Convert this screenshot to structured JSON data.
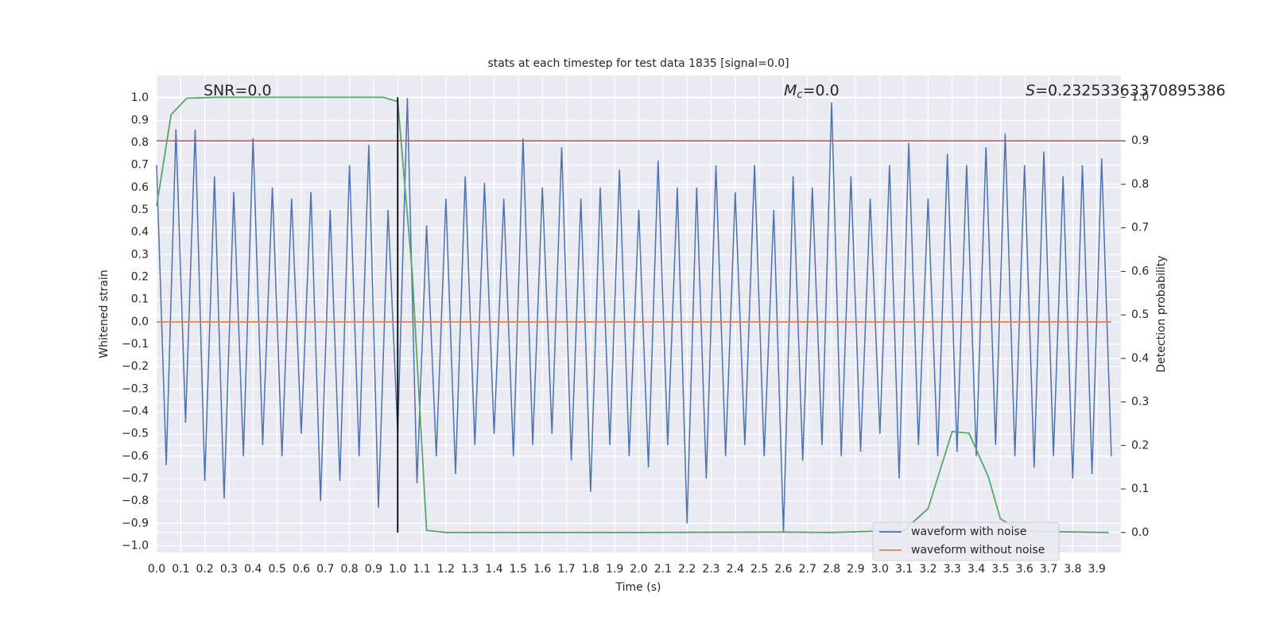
{
  "chart_data": {
    "type": "line",
    "title": "stats at each timestep for test data 1835 [signal=0.0]",
    "xlabel": "Time (s)",
    "ylabel": "Whitened strain",
    "y2label": "Detection probability",
    "annotations": [
      {
        "text": "SNR=0.0"
      },
      {
        "symbol": "M",
        "subscript": "c",
        "text": "=0.0"
      },
      {
        "symbol": "S",
        "text": "=0.23253363370895386"
      }
    ],
    "x": [
      0.0,
      0.04,
      0.08,
      0.12,
      0.16,
      0.2,
      0.24,
      0.28,
      0.32,
      0.36,
      0.4,
      0.44,
      0.48,
      0.52,
      0.56,
      0.6,
      0.64,
      0.68,
      0.72,
      0.76,
      0.8,
      0.84,
      0.88,
      0.92,
      0.96,
      1.0,
      1.04,
      1.08,
      1.12,
      1.16,
      1.2,
      1.24,
      1.28,
      1.32,
      1.36,
      1.4,
      1.44,
      1.48,
      1.52,
      1.56,
      1.6,
      1.64,
      1.68,
      1.72,
      1.76,
      1.8,
      1.84,
      1.88,
      1.92,
      1.96,
      2.0,
      2.04,
      2.08,
      2.12,
      2.16,
      2.2,
      2.24,
      2.28,
      2.32,
      2.36,
      2.4,
      2.44,
      2.48,
      2.52,
      2.56,
      2.6,
      2.64,
      2.68,
      2.72,
      2.76,
      2.8,
      2.84,
      2.88,
      2.92,
      2.96,
      3.0,
      3.04,
      3.08,
      3.12,
      3.16,
      3.2,
      3.24,
      3.28,
      3.32,
      3.36,
      3.4,
      3.44,
      3.48,
      3.52,
      3.56,
      3.6,
      3.64,
      3.68,
      3.72,
      3.76,
      3.8,
      3.84,
      3.88,
      3.92,
      3.96
    ],
    "series": [
      {
        "name": "waveform with noise",
        "color": "#4c72b0",
        "values": [
          0.7,
          -0.64,
          0.86,
          -0.45,
          0.86,
          -0.71,
          0.65,
          -0.79,
          0.58,
          -0.6,
          0.82,
          -0.55,
          0.6,
          -0.6,
          0.55,
          -0.5,
          0.58,
          -0.8,
          0.5,
          -0.71,
          0.7,
          -0.6,
          0.79,
          -0.83,
          0.5,
          -0.5,
          1.0,
          -0.72,
          0.43,
          -0.6,
          0.55,
          -0.68,
          0.65,
          -0.55,
          0.62,
          -0.5,
          0.55,
          -0.6,
          0.82,
          -0.55,
          0.6,
          -0.5,
          0.78,
          -0.62,
          0.55,
          -0.76,
          0.6,
          -0.55,
          0.68,
          -0.6,
          0.5,
          -0.65,
          0.72,
          -0.55,
          0.6,
          -0.9,
          0.6,
          -0.7,
          0.7,
          -0.6,
          0.58,
          -0.55,
          0.7,
          -0.6,
          0.5,
          -0.94,
          0.65,
          -0.62,
          0.6,
          -0.55,
          0.98,
          -0.6,
          0.65,
          -0.58,
          0.55,
          -0.5,
          0.7,
          -0.7,
          0.8,
          -0.55,
          0.55,
          -0.6,
          0.75,
          -0.58,
          0.7,
          -0.6,
          0.78,
          -0.55,
          0.84,
          -0.6,
          0.7,
          -0.65,
          0.76,
          -0.6,
          0.65,
          -0.7,
          0.7,
          -0.68,
          0.73,
          -0.6
        ]
      },
      {
        "name": "waveform without noise",
        "color": "#dd8452",
        "values": [
          0,
          0,
          0,
          0,
          0,
          0,
          0,
          0,
          0,
          0,
          0,
          0,
          0,
          0,
          0,
          0,
          0,
          0,
          0,
          0,
          0,
          0,
          0,
          0,
          0,
          0,
          0,
          0,
          0,
          0,
          0,
          0,
          0,
          0,
          0,
          0,
          0,
          0,
          0,
          0,
          0,
          0,
          0,
          0,
          0,
          0,
          0,
          0,
          0,
          0,
          0,
          0,
          0,
          0,
          0,
          0,
          0,
          0,
          0,
          0,
          0,
          0,
          0,
          0,
          0,
          0,
          0,
          0,
          0,
          0,
          0,
          0,
          0,
          0,
          0,
          0,
          0,
          0,
          0,
          0,
          0,
          0,
          0,
          0,
          0,
          0,
          0,
          0,
          0,
          0,
          0,
          0,
          0,
          0,
          0,
          0,
          0,
          0,
          0,
          0
        ]
      }
    ],
    "probability": {
      "color": "#55a868",
      "axis": "y2",
      "x": [
        0.0,
        0.06,
        0.125,
        0.25,
        0.5,
        0.94,
        1.0,
        1.06,
        1.12,
        1.2,
        1.6,
        2.0,
        2.6,
        2.8,
        3.1,
        3.2,
        3.3,
        3.37,
        3.45,
        3.5,
        3.6,
        3.95
      ],
      "values": [
        0.75,
        0.96,
        0.998,
        1.0,
        1.0,
        1.0,
        0.99,
        0.6,
        0.005,
        0.0,
        0.0,
        0.0,
        0.001,
        0.0,
        0.005,
        0.055,
        0.232,
        0.228,
        0.128,
        0.031,
        0.003,
        0.0
      ]
    },
    "threshold": {
      "value": 0.9,
      "axis": "y2",
      "color": "#c44e52"
    },
    "marker": {
      "x": 1.0,
      "ymin": 0.0,
      "ymax": 1.0,
      "axis": "y2",
      "color": "#000000"
    },
    "xlim": [
      0,
      4.0
    ],
    "ylim": [
      -1.03,
      1.1
    ],
    "y2lim": [
      -0.046,
      1.05
    ],
    "xticks": [
      {
        "value": 0.0,
        "label": "0.0"
      },
      {
        "value": 0.1,
        "label": "0.1"
      },
      {
        "value": 0.2,
        "label": "0.2"
      },
      {
        "value": 0.3,
        "label": "0.3"
      },
      {
        "value": 0.4,
        "label": "0.4"
      },
      {
        "value": 0.5,
        "label": "0.5"
      },
      {
        "value": 0.6,
        "label": "0.6"
      },
      {
        "value": 0.7,
        "label": "0.7"
      },
      {
        "value": 0.8,
        "label": "0.8"
      },
      {
        "value": 0.9,
        "label": "0.9"
      },
      {
        "value": 1.0,
        "label": "1.0"
      },
      {
        "value": 1.1,
        "label": "1.1"
      },
      {
        "value": 1.2,
        "label": "1.2"
      },
      {
        "value": 1.3,
        "label": "1.3"
      },
      {
        "value": 1.4,
        "label": "1.4"
      },
      {
        "value": 1.5,
        "label": "1.5"
      },
      {
        "value": 1.6,
        "label": "1.6"
      },
      {
        "value": 1.7,
        "label": "1.7"
      },
      {
        "value": 1.8,
        "label": "1.8"
      },
      {
        "value": 1.9,
        "label": "1.9"
      },
      {
        "value": 2.0,
        "label": "2.0"
      },
      {
        "value": 2.1,
        "label": "2.1"
      },
      {
        "value": 2.2,
        "label": "2.2"
      },
      {
        "value": 2.3,
        "label": "2.3"
      },
      {
        "value": 2.4,
        "label": "2.4"
      },
      {
        "value": 2.5,
        "label": "2.5"
      },
      {
        "value": 2.6,
        "label": "2.6"
      },
      {
        "value": 2.7,
        "label": "2.7"
      },
      {
        "value": 2.8,
        "label": "2.8"
      },
      {
        "value": 2.9,
        "label": "2.9"
      },
      {
        "value": 3.0,
        "label": "3.0"
      },
      {
        "value": 3.1,
        "label": "3.1"
      },
      {
        "value": 3.2,
        "label": "3.2"
      },
      {
        "value": 3.3,
        "label": "3.3"
      },
      {
        "value": 3.4,
        "label": "3.4"
      },
      {
        "value": 3.5,
        "label": "3.5"
      },
      {
        "value": 3.6,
        "label": "3.6"
      },
      {
        "value": 3.7,
        "label": "3.7"
      },
      {
        "value": 3.8,
        "label": "3.8"
      },
      {
        "value": 3.9,
        "label": "3.9"
      }
    ],
    "yticks": [
      {
        "value": -1.0,
        "label": "−1.0"
      },
      {
        "value": -0.9,
        "label": "−0.9"
      },
      {
        "value": -0.8,
        "label": "−0.8"
      },
      {
        "value": -0.7,
        "label": "−0.7"
      },
      {
        "value": -0.6,
        "label": "−0.6"
      },
      {
        "value": -0.5,
        "label": "−0.5"
      },
      {
        "value": -0.4,
        "label": "−0.4"
      },
      {
        "value": -0.3,
        "label": "−0.3"
      },
      {
        "value": -0.2,
        "label": "−0.2"
      },
      {
        "value": -0.1,
        "label": "−0.1"
      },
      {
        "value": 0.0,
        "label": "0.0"
      },
      {
        "value": 0.1,
        "label": "0.1"
      },
      {
        "value": 0.2,
        "label": "0.2"
      },
      {
        "value": 0.3,
        "label": "0.3"
      },
      {
        "value": 0.4,
        "label": "0.4"
      },
      {
        "value": 0.5,
        "label": "0.5"
      },
      {
        "value": 0.6,
        "label": "0.6"
      },
      {
        "value": 0.7,
        "label": "0.7"
      },
      {
        "value": 0.8,
        "label": "0.8"
      },
      {
        "value": 0.9,
        "label": "0.9"
      },
      {
        "value": 1.0,
        "label": "1.0"
      }
    ],
    "y2ticks": [
      {
        "value": 0.0,
        "label": "0.0"
      },
      {
        "value": 0.1,
        "label": "0.1"
      },
      {
        "value": 0.2,
        "label": "0.2"
      },
      {
        "value": 0.3,
        "label": "0.3"
      },
      {
        "value": 0.4,
        "label": "0.4"
      },
      {
        "value": 0.5,
        "label": "0.5"
      },
      {
        "value": 0.6,
        "label": "0.6"
      },
      {
        "value": 0.7,
        "label": "0.7"
      },
      {
        "value": 0.8,
        "label": "0.8"
      },
      {
        "value": 0.9,
        "label": "0.9"
      },
      {
        "value": 1.0,
        "label": "1.0"
      }
    ],
    "grid": true,
    "legend": "lower right"
  }
}
